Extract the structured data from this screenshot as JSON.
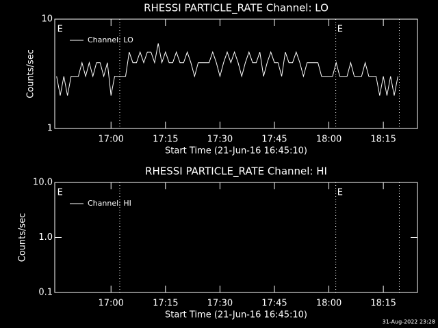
{
  "chart_data": [
    {
      "type": "line",
      "title": "RHESSI PARTICLE_RATE Channel: LO",
      "xlabel": "Start Time (21-Jun-16 16:45:10)",
      "ylabel": "Counts/sec",
      "log_y": true,
      "legend": "upper left",
      "xlim": [
        1004.5,
        1104.4
      ],
      "xticks": [
        {
          "value": 1020,
          "label": "17:00"
        },
        {
          "value": 1035,
          "label": "17:15"
        },
        {
          "value": 1050,
          "label": "17:30"
        },
        {
          "value": 1065,
          "label": "17:45"
        },
        {
          "value": 1080,
          "label": "18:00"
        },
        {
          "value": 1095,
          "label": "18:15"
        }
      ],
      "ylim": [
        1,
        10
      ],
      "yticks": [
        1,
        10
      ],
      "vlines": [
        1022.4,
        1081.9,
        1099.4
      ],
      "annotations": [
        {
          "x": 1005,
          "text": "E"
        },
        {
          "x": 1082.1,
          "text": "E"
        }
      ],
      "x": [
        1005,
        1006,
        1007,
        1008,
        1009,
        1010,
        1011,
        1012,
        1013,
        1014,
        1015,
        1016,
        1017,
        1018,
        1019,
        1020,
        1021,
        1022,
        1023,
        1024,
        1025,
        1026,
        1027,
        1028,
        1029,
        1030,
        1031,
        1032,
        1033,
        1034,
        1035,
        1036,
        1037,
        1038,
        1039,
        1040,
        1041,
        1042,
        1043,
        1044,
        1045,
        1046,
        1047,
        1048,
        1049,
        1050,
        1051,
        1052,
        1053,
        1054,
        1055,
        1056,
        1057,
        1058,
        1059,
        1060,
        1061,
        1062,
        1063,
        1064,
        1065,
        1066,
        1067,
        1068,
        1069,
        1070,
        1071,
        1072,
        1073,
        1074,
        1075,
        1076,
        1077,
        1078,
        1079,
        1080,
        1081,
        1082,
        1083,
        1084,
        1085,
        1086,
        1087,
        1088,
        1089,
        1090,
        1091,
        1092,
        1093,
        1094,
        1095,
        1096,
        1097,
        1098,
        1099
      ],
      "series": [
        {
          "name": "Channel: LO",
          "color": "#ffffff",
          "values": [
            3,
            2,
            3,
            2,
            3,
            3,
            3,
            4,
            3,
            4,
            3,
            4,
            4,
            3,
            4,
            2,
            3,
            3,
            3,
            3,
            5,
            4,
            4,
            5,
            4,
            5,
            5,
            4,
            6,
            4,
            5,
            4,
            4,
            5,
            4,
            4,
            5,
            4,
            3,
            4,
            4,
            4,
            4,
            5,
            4,
            3,
            4,
            5,
            4,
            5,
            4,
            3,
            4,
            5,
            4,
            4,
            5,
            3,
            4,
            5,
            4,
            4,
            3,
            5,
            4,
            4,
            5,
            4,
            3,
            4,
            4,
            4,
            4,
            3,
            3,
            3,
            3,
            4,
            3,
            3,
            3,
            4,
            3,
            3,
            3,
            4,
            3,
            3,
            3,
            2,
            3,
            2,
            3,
            2,
            3
          ]
        }
      ]
    },
    {
      "type": "line",
      "title": "RHESSI PARTICLE_RATE Channel: HI",
      "xlabel": "Start Time (21-Jun-16 16:45:10)",
      "ylabel": "Counts/sec",
      "log_y": true,
      "legend": "upper left",
      "xlim": [
        1004.5,
        1104.4
      ],
      "xticks": [
        {
          "value": 1020,
          "label": "17:00"
        },
        {
          "value": 1035,
          "label": "17:15"
        },
        {
          "value": 1050,
          "label": "17:30"
        },
        {
          "value": 1065,
          "label": "17:45"
        },
        {
          "value": 1080,
          "label": "18:00"
        },
        {
          "value": 1095,
          "label": "18:15"
        }
      ],
      "ylim": [
        0.1,
        10
      ],
      "yticks": [
        0.1,
        {
          "value": 1,
          "label": "1.0"
        },
        {
          "value": 10,
          "label": "10.0"
        }
      ],
      "vlines": [
        1022.4,
        1081.9,
        1099.4
      ],
      "annotations": [
        {
          "x": 1005,
          "text": "E"
        },
        {
          "x": 1082.1,
          "text": "E"
        }
      ],
      "x": [],
      "series": [
        {
          "name": "Channel: HI",
          "color": "#ffffff",
          "values": []
        }
      ]
    }
  ],
  "footer": "31-Aug-2022 23:28"
}
